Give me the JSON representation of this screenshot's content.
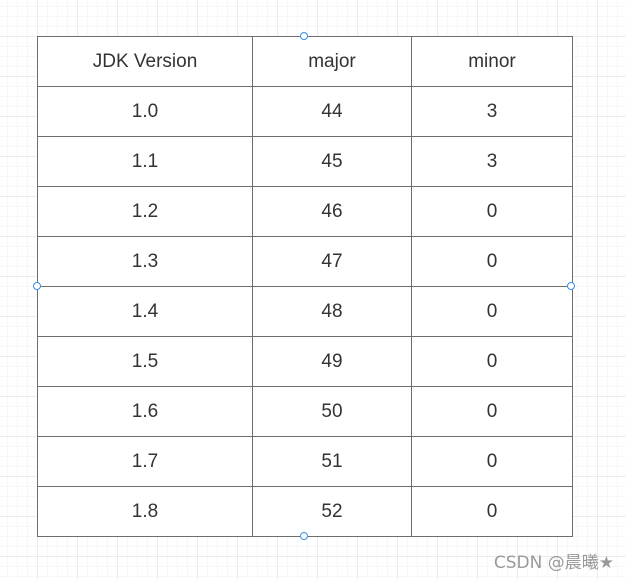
{
  "table": {
    "headers": [
      "JDK Version",
      "major",
      "minor"
    ],
    "rows": [
      [
        "1.0",
        "44",
        "3"
      ],
      [
        "1.1",
        "45",
        "3"
      ],
      [
        "1.2",
        "46",
        "0"
      ],
      [
        "1.3",
        "47",
        "0"
      ],
      [
        "1.4",
        "48",
        "0"
      ],
      [
        "1.5",
        "49",
        "0"
      ],
      [
        "1.6",
        "50",
        "0"
      ],
      [
        "1.7",
        "51",
        "0"
      ],
      [
        "1.8",
        "52",
        "0"
      ]
    ]
  },
  "watermark": "CSDN @晨曦★",
  "colors": {
    "grid_line": "#ececec",
    "table_border": "#6e6e6e",
    "handle_accent": "#3a8ee6"
  },
  "selection": {
    "handles": [
      "top",
      "bottom",
      "left",
      "right"
    ]
  }
}
